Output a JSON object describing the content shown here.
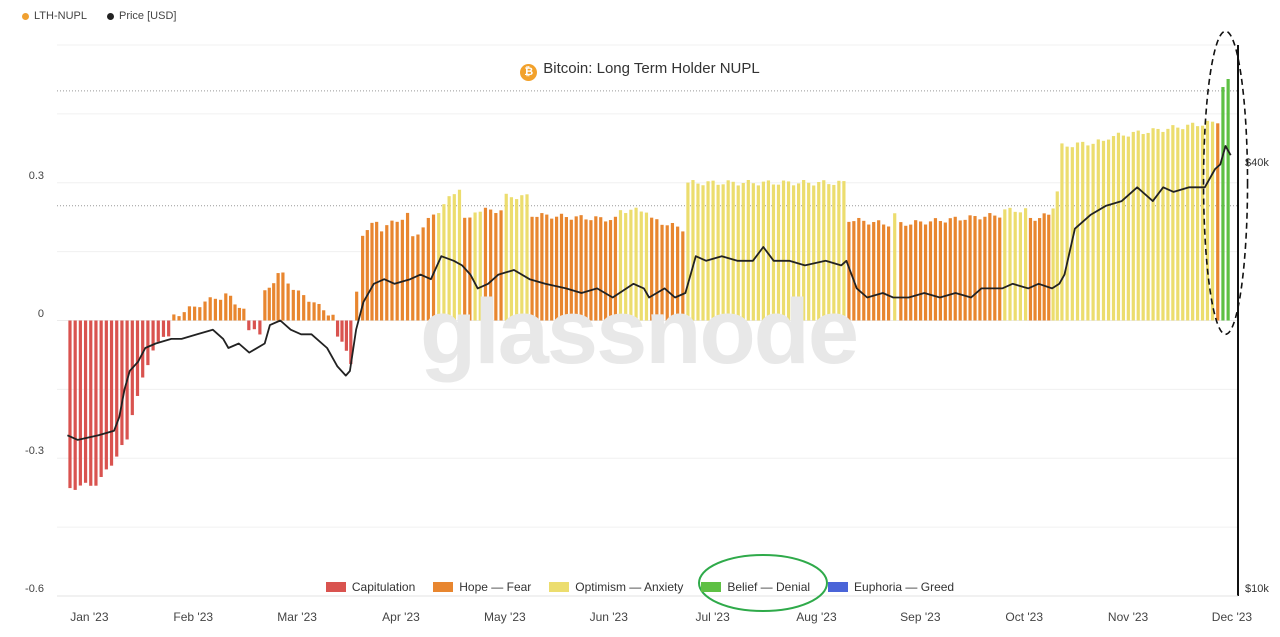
{
  "top_legend": [
    {
      "label": "LTH-NUPL",
      "color": "#f0a030"
    },
    {
      "label": "Price [USD]",
      "color": "#222222"
    }
  ],
  "chart_data": {
    "type": "bar",
    "title": "Bitcoin: Long Term Holder NUPL",
    "watermark": "glassnode",
    "xlabel": "",
    "ylabel": "",
    "ylim": [
      -0.6,
      0.6
    ],
    "y_ticks": [
      "0.3",
      "0",
      "-0.3",
      "-0.6"
    ],
    "y_tick_values": [
      0.3,
      0,
      -0.3,
      -0.6
    ],
    "right_axis_ticks": [
      "$40k",
      "$10k"
    ],
    "x_tick_labels": [
      "Jan '23",
      "Feb '23",
      "Mar '23",
      "Apr '23",
      "May '23",
      "Jun '23",
      "Jul '23",
      "Aug '23",
      "Sep '23",
      "Oct '23",
      "Nov '23",
      "Dec '23"
    ],
    "x_tick_months": [
      0,
      1,
      2,
      3,
      4,
      5,
      6,
      7,
      8,
      9,
      10,
      11
    ],
    "x_range_months": [
      -0.1,
      11.27
    ],
    "zones": [
      {
        "name": "Capitulation",
        "color": "#d9534f"
      },
      {
        "name": "Hope — Fear",
        "color": "#e8862f"
      },
      {
        "name": "Optimism — Anxiety",
        "color": "#ecdd6e"
      },
      {
        "name": "Belief — Denial",
        "color": "#5ec044"
      },
      {
        "name": "Euphoria — Greed",
        "color": "#4a64d8"
      }
    ],
    "series": [
      {
        "name": "LTH-NUPL",
        "type": "bar",
        "segments": [
          {
            "start": 0.0,
            "end": 0.3,
            "zone": 0,
            "from": -0.365,
            "to": -0.355
          },
          {
            "start": 0.3,
            "end": 0.6,
            "zone": 0,
            "from": -0.345,
            "to": -0.26
          },
          {
            "start": 0.6,
            "end": 0.85,
            "zone": 0,
            "from": -0.2,
            "to": -0.06
          },
          {
            "start": 0.85,
            "end": 1.0,
            "zone": 0,
            "from": -0.05,
            "to": -0.03
          },
          {
            "start": 1.0,
            "end": 1.45,
            "zone": 1,
            "from": 0.01,
            "to": 0.05
          },
          {
            "start": 1.45,
            "end": 1.55,
            "zone": 1,
            "from": 0.05,
            "to": 0.055
          },
          {
            "start": 1.55,
            "end": 1.72,
            "zone": 1,
            "from": 0.05,
            "to": 0.02
          },
          {
            "start": 1.72,
            "end": 1.88,
            "zone": 0,
            "from": -0.02,
            "to": -0.03
          },
          {
            "start": 1.88,
            "end": 2.05,
            "zone": 1,
            "from": 0.06,
            "to": 0.1
          },
          {
            "start": 2.05,
            "end": 2.2,
            "zone": 1,
            "from": 0.1,
            "to": 0.07
          },
          {
            "start": 2.2,
            "end": 2.4,
            "zone": 1,
            "from": 0.06,
            "to": 0.04
          },
          {
            "start": 2.4,
            "end": 2.58,
            "zone": 1,
            "from": 0.03,
            "to": 0.01
          },
          {
            "start": 2.58,
            "end": 2.75,
            "zone": 0,
            "from": -0.03,
            "to": -0.09
          },
          {
            "start": 2.75,
            "end": 2.82,
            "zone": 1,
            "from": 0.02,
            "to": 0.1
          },
          {
            "start": 2.82,
            "end": 3.0,
            "zone": 1,
            "from": 0.19,
            "to": 0.215
          },
          {
            "start": 3.0,
            "end": 3.3,
            "zone": 1,
            "from": 0.2,
            "to": 0.23
          },
          {
            "start": 3.3,
            "end": 3.55,
            "zone": 1,
            "from": 0.18,
            "to": 0.23
          },
          {
            "start": 3.55,
            "end": 3.8,
            "zone": 2,
            "from": 0.24,
            "to": 0.29
          },
          {
            "start": 3.8,
            "end": 3.9,
            "zone": 1,
            "from": 0.22,
            "to": 0.22
          },
          {
            "start": 3.9,
            "end": 4.0,
            "zone": 2,
            "from": 0.24,
            "to": 0.24
          },
          {
            "start": 4.0,
            "end": 4.2,
            "zone": 1,
            "from": 0.24,
            "to": 0.24
          },
          {
            "start": 4.2,
            "end": 4.45,
            "zone": 2,
            "from": 0.27,
            "to": 0.27
          },
          {
            "start": 4.45,
            "end": 5.3,
            "zone": 1,
            "from": 0.23,
            "to": 0.22
          },
          {
            "start": 5.3,
            "end": 5.6,
            "zone": 2,
            "from": 0.24,
            "to": 0.24
          },
          {
            "start": 5.6,
            "end": 5.95,
            "zone": 1,
            "from": 0.22,
            "to": 0.2
          },
          {
            "start": 5.95,
            "end": 7.5,
            "zone": 2,
            "from": 0.3,
            "to": 0.3
          },
          {
            "start": 7.5,
            "end": 7.93,
            "zone": 1,
            "from": 0.22,
            "to": 0.21
          },
          {
            "start": 7.93,
            "end": 8.0,
            "zone": 2,
            "from": 0.23,
            "to": 0.23
          },
          {
            "start": 8.0,
            "end": 9.0,
            "zone": 1,
            "from": 0.21,
            "to": 0.23
          },
          {
            "start": 9.0,
            "end": 9.25,
            "zone": 2,
            "from": 0.24,
            "to": 0.24
          },
          {
            "start": 9.25,
            "end": 9.47,
            "zone": 1,
            "from": 0.22,
            "to": 0.23
          },
          {
            "start": 9.47,
            "end": 9.55,
            "zone": 2,
            "from": 0.25,
            "to": 0.28
          },
          {
            "start": 9.55,
            "end": 10.0,
            "zone": 2,
            "from": 0.38,
            "to": 0.39
          },
          {
            "start": 10.0,
            "end": 11.0,
            "zone": 2,
            "from": 0.4,
            "to": 0.43
          },
          {
            "start": 11.0,
            "end": 11.05,
            "zone": 2,
            "from": 0.43,
            "to": 0.43
          },
          {
            "start": 11.05,
            "end": 11.1,
            "zone": 1,
            "from": 0.43,
            "to": 0.44
          },
          {
            "start": 11.1,
            "end": 11.2,
            "zone": 3,
            "from": 0.51,
            "to": 0.52
          }
        ]
      },
      {
        "name": "Price [USD]",
        "type": "line",
        "color": "#222222",
        "x": [
          0,
          0.1,
          0.3,
          0.45,
          0.5,
          0.55,
          0.6,
          0.68,
          0.75,
          0.85,
          1.0,
          1.1,
          1.25,
          1.4,
          1.5,
          1.55,
          1.65,
          1.75,
          1.9,
          1.95,
          2.05,
          2.15,
          2.25,
          2.35,
          2.5,
          2.6,
          2.68,
          2.72,
          2.78,
          2.85,
          2.95,
          3.05,
          3.15,
          3.3,
          3.4,
          3.5,
          3.6,
          3.72,
          3.8,
          3.88,
          3.95,
          4.05,
          4.15,
          4.3,
          4.45,
          4.6,
          4.8,
          4.95,
          5.1,
          5.25,
          5.45,
          5.55,
          5.6,
          5.75,
          5.85,
          5.95,
          6.05,
          6.15,
          6.3,
          6.45,
          6.6,
          6.7,
          6.8,
          6.95,
          7.1,
          7.3,
          7.45,
          7.5,
          7.6,
          7.7,
          7.85,
          7.95,
          8.1,
          8.25,
          8.4,
          8.55,
          8.7,
          8.8,
          8.9,
          9.0,
          9.1,
          9.25,
          9.35,
          9.48,
          9.55,
          9.6,
          9.7,
          9.85,
          10.0,
          10.15,
          10.3,
          10.45,
          10.55,
          10.65,
          10.8,
          10.95,
          11.05,
          11.1,
          11.15,
          11.2
        ],
        "y": [
          -0.25,
          -0.26,
          -0.25,
          -0.24,
          -0.21,
          -0.15,
          -0.11,
          -0.09,
          -0.06,
          -0.05,
          -0.04,
          -0.04,
          -0.03,
          -0.02,
          -0.04,
          -0.06,
          -0.05,
          -0.07,
          -0.05,
          -0.01,
          0.0,
          -0.02,
          -0.03,
          -0.03,
          -0.06,
          -0.1,
          -0.12,
          -0.11,
          -0.02,
          0.04,
          0.08,
          0.09,
          0.08,
          0.09,
          0.1,
          0.09,
          0.14,
          0.13,
          0.12,
          0.1,
          0.07,
          0.08,
          0.1,
          0.11,
          0.09,
          0.08,
          0.07,
          0.06,
          0.07,
          0.05,
          0.08,
          0.07,
          0.05,
          0.07,
          0.05,
          0.06,
          0.14,
          0.13,
          0.14,
          0.13,
          0.13,
          0.16,
          0.13,
          0.13,
          0.12,
          0.13,
          0.12,
          0.13,
          0.07,
          0.05,
          0.06,
          0.05,
          0.05,
          0.06,
          0.05,
          0.06,
          0.05,
          0.07,
          0.07,
          0.07,
          0.08,
          0.07,
          0.08,
          0.07,
          0.08,
          0.1,
          0.2,
          0.23,
          0.25,
          0.26,
          0.29,
          0.26,
          0.29,
          0.28,
          0.29,
          0.29,
          0.33,
          0.34,
          0.38,
          0.36
        ]
      }
    ],
    "highlight": "Belief — Denial"
  }
}
